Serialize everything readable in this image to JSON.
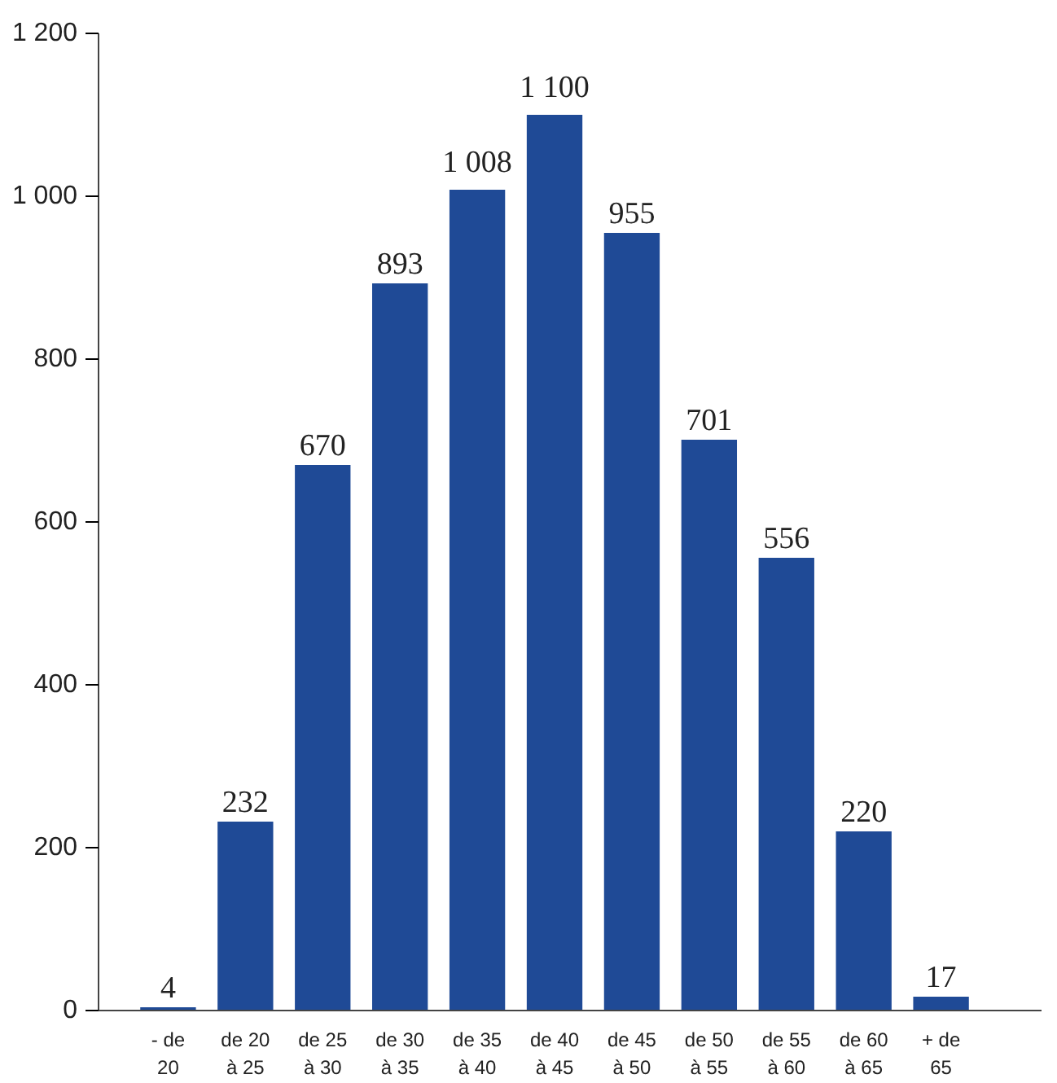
{
  "chart_data": {
    "type": "bar",
    "categories": [
      "- de\n20",
      "de 20\nà 25",
      "de 25\nà 30",
      "de 30\nà 35",
      "de 35\nà 40",
      "de 40\nà 45",
      "de 45\nà 50",
      "de 50\nà 55",
      "de 55\nà 60",
      "de 60\nà 65",
      "+ de\n65"
    ],
    "values": [
      4,
      232,
      670,
      893,
      1008,
      1100,
      955,
      701,
      556,
      220,
      17
    ],
    "value_labels": [
      "4",
      "232",
      "670",
      "893",
      "1 008",
      "1 100",
      "955",
      "701",
      "556",
      "220",
      "17"
    ],
    "color": "#1f4a96",
    "ylim": [
      0,
      1200
    ],
    "yticks": [
      0,
      200,
      400,
      600,
      800,
      {
        "value": 1000,
        "label": "1 000"
      },
      {
        "value": 1200,
        "label": "1 200"
      }
    ],
    "grid": false
  }
}
